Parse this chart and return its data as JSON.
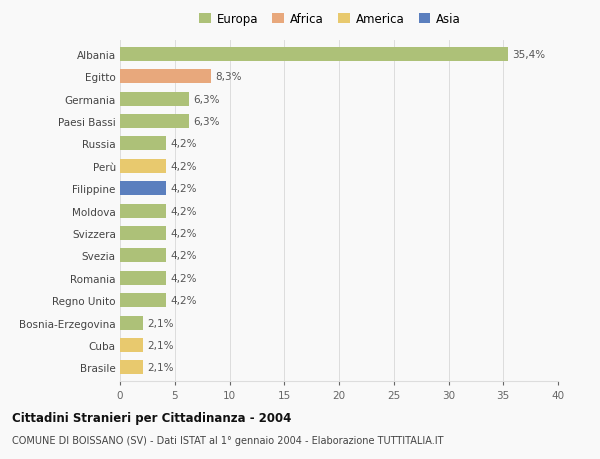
{
  "countries": [
    "Albania",
    "Egitto",
    "Germania",
    "Paesi Bassi",
    "Russia",
    "Perù",
    "Filippine",
    "Moldova",
    "Svizzera",
    "Svezia",
    "Romania",
    "Regno Unito",
    "Bosnia-Erzegovina",
    "Cuba",
    "Brasile"
  ],
  "values": [
    35.4,
    8.3,
    6.3,
    6.3,
    4.2,
    4.2,
    4.2,
    4.2,
    4.2,
    4.2,
    4.2,
    4.2,
    2.1,
    2.1,
    2.1
  ],
  "labels": [
    "35,4%",
    "8,3%",
    "6,3%",
    "6,3%",
    "4,2%",
    "4,2%",
    "4,2%",
    "4,2%",
    "4,2%",
    "4,2%",
    "4,2%",
    "4,2%",
    "2,1%",
    "2,1%",
    "2,1%"
  ],
  "colors": [
    "#adc178",
    "#e8a87c",
    "#adc178",
    "#adc178",
    "#adc178",
    "#e8c96e",
    "#5b7fbe",
    "#adc178",
    "#adc178",
    "#adc178",
    "#adc178",
    "#adc178",
    "#adc178",
    "#e8c96e",
    "#e8c96e"
  ],
  "legend_labels": [
    "Europa",
    "Africa",
    "America",
    "Asia"
  ],
  "legend_colors": [
    "#adc178",
    "#e8a87c",
    "#e8c96e",
    "#5b7fbe"
  ],
  "title": "Cittadini Stranieri per Cittadinanza - 2004",
  "subtitle": "COMUNE DI BOISSANO (SV) - Dati ISTAT al 1° gennaio 2004 - Elaborazione TUTTITALIA.IT",
  "xlim": [
    0,
    40
  ],
  "xticks": [
    0,
    5,
    10,
    15,
    20,
    25,
    30,
    35,
    40
  ],
  "background_color": "#f9f9f9",
  "grid_color": "#dddddd"
}
